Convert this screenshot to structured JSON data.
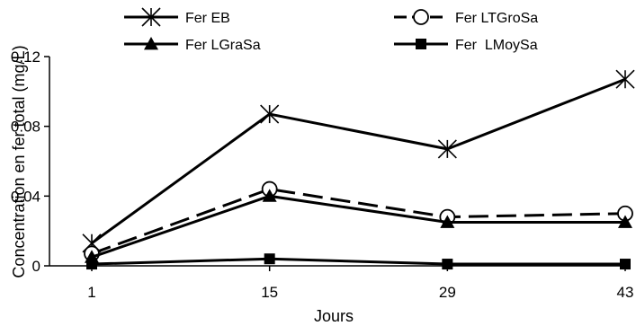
{
  "chart_data": {
    "type": "line",
    "title": "",
    "xlabel": "Jours",
    "ylabel": "Concentration en fer total (mg/L)",
    "categories": [
      "1",
      "15",
      "29",
      "43"
    ],
    "x": [
      1,
      15,
      29,
      43
    ],
    "xlim": [
      1,
      43
    ],
    "ylim": [
      0,
      0.12
    ],
    "yticks": [
      "0",
      "0.04",
      "0.08",
      "0.12"
    ],
    "ytick_values": [
      0,
      0.04,
      0.08,
      0.12
    ],
    "grid": false,
    "legend_position": "top",
    "series": [
      {
        "name": "Fer EB",
        "values": [
          0.013,
          0.087,
          0.067,
          0.107
        ],
        "marker": "asterisk",
        "line": "solid",
        "color": "#000000"
      },
      {
        "name": "Fer LTGroSa",
        "values": [
          0.007,
          0.044,
          0.028,
          0.03
        ],
        "marker": "open-circle",
        "line": "dashed",
        "color": "#000000"
      },
      {
        "name": "Fer LGraSa",
        "values": [
          0.005,
          0.04,
          0.025,
          0.025
        ],
        "marker": "filled-triangle",
        "line": "solid",
        "color": "#000000"
      },
      {
        "name": "Fer  LMoySa",
        "values": [
          0.001,
          0.004,
          0.001,
          0.001
        ],
        "marker": "filled-square",
        "line": "solid",
        "color": "#000000"
      }
    ]
  }
}
